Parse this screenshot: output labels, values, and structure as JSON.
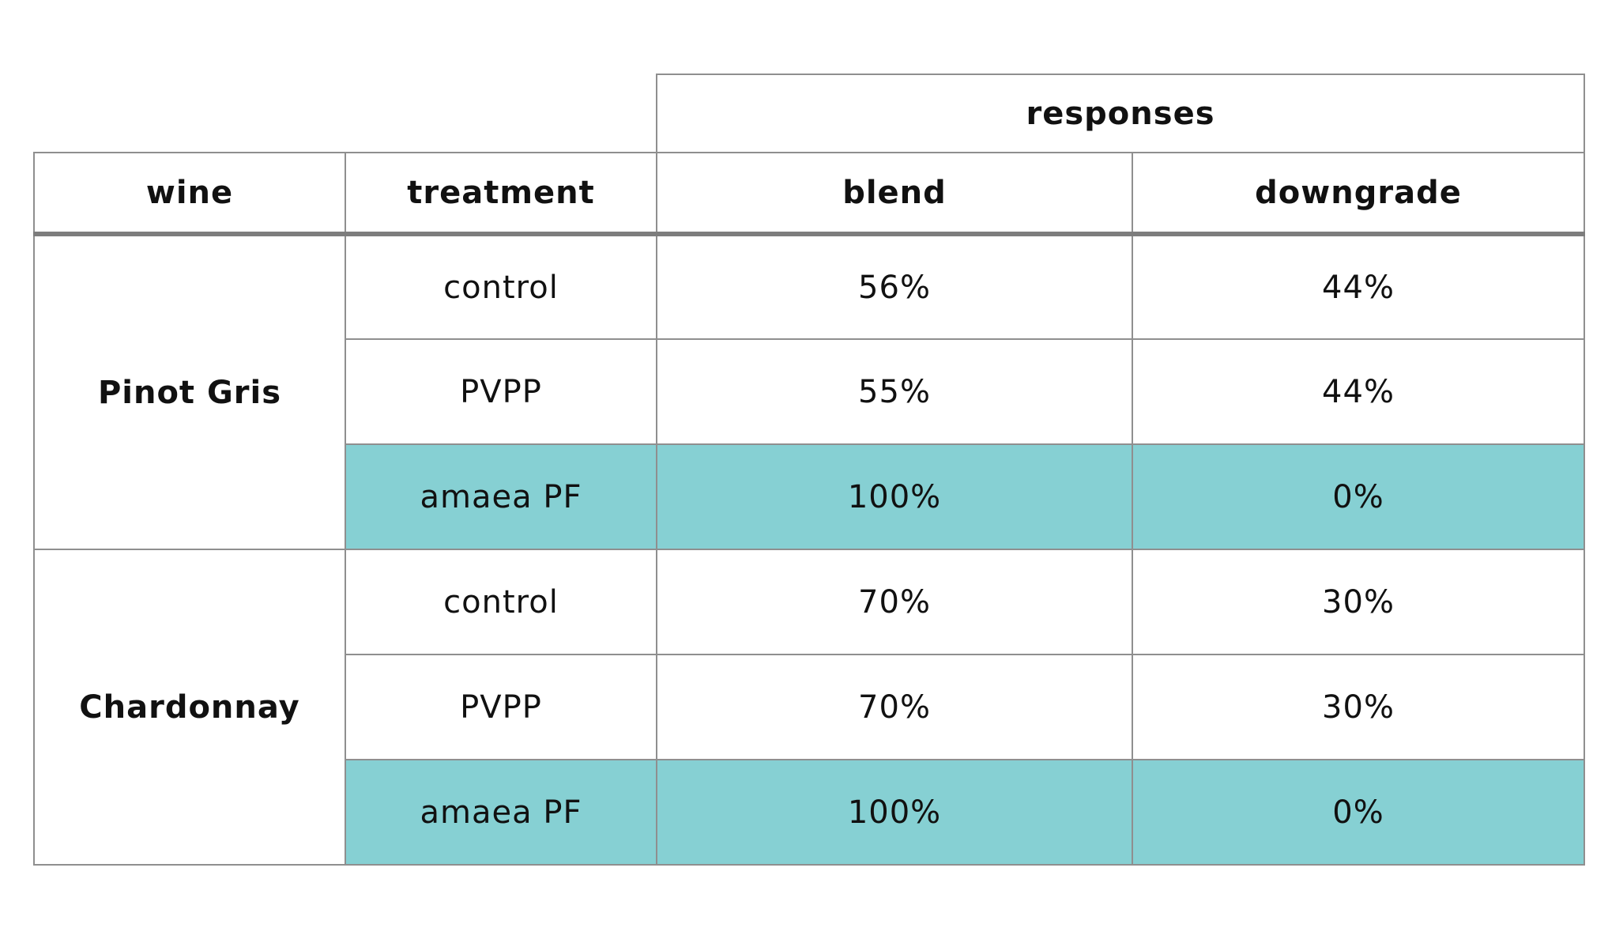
{
  "chart_data": {
    "type": "table",
    "group_header": "responses",
    "columns": [
      "wine",
      "treatment",
      "blend",
      "downgrade"
    ],
    "highlight_color": "#86d0d3",
    "groups": [
      {
        "wine": "Pinot Gris",
        "rows": [
          {
            "treatment": "control",
            "blend": "56%",
            "downgrade": "44%",
            "highlight": false
          },
          {
            "treatment": "PVPP",
            "blend": "55%",
            "downgrade": "44%",
            "highlight": false
          },
          {
            "treatment": "amaea PF",
            "blend": "100%",
            "downgrade": "0%",
            "highlight": true
          }
        ]
      },
      {
        "wine": "Chardonnay",
        "rows": [
          {
            "treatment": "control",
            "blend": "70%",
            "downgrade": "30%",
            "highlight": false
          },
          {
            "treatment": "PVPP",
            "blend": "70%",
            "downgrade": "30%",
            "highlight": false
          },
          {
            "treatment": "amaea PF",
            "blend": "100%",
            "downgrade": "0%",
            "highlight": true
          }
        ]
      }
    ]
  }
}
